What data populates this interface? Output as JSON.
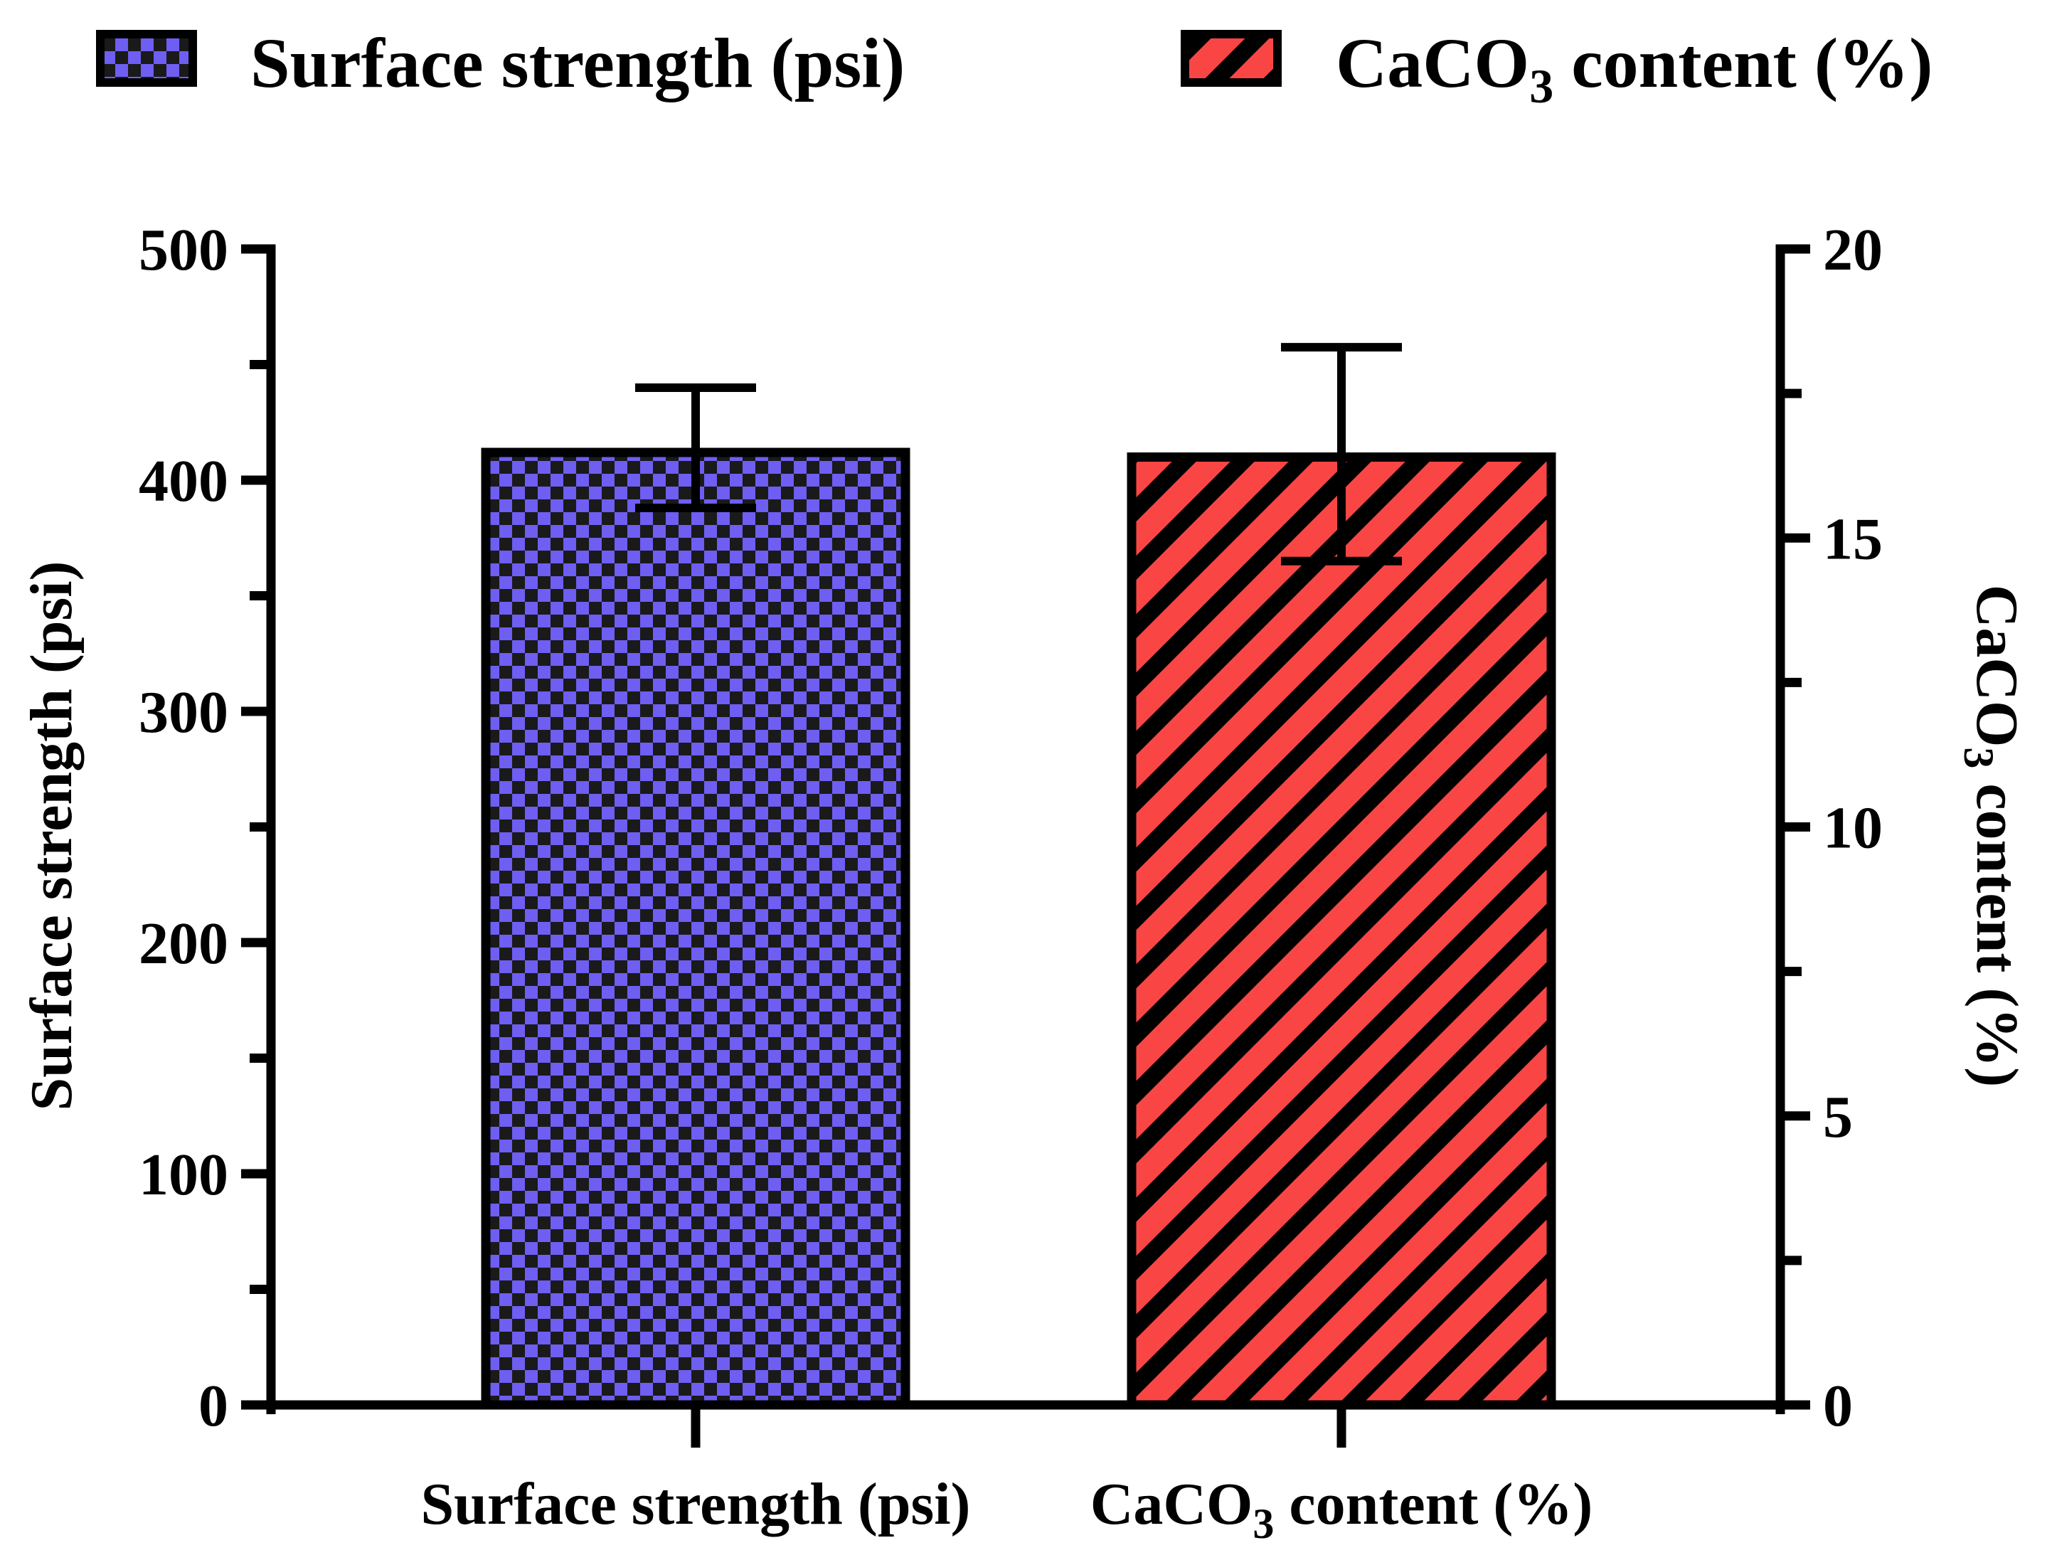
{
  "chart_data": {
    "type": "bar",
    "categories": [
      "Surface strength (psi)",
      "CaCO3 content (%)"
    ],
    "series": [
      {
        "name": "Surface strength (psi)",
        "axis": "left",
        "category": "Surface strength (psi)",
        "value": 412,
        "error_plus": 28,
        "error_minus": 24,
        "color": "#6e5ef2",
        "pattern": "checkerboard"
      },
      {
        "name": "CaCO3 content (%)",
        "axis": "right",
        "category": "CaCO3 content (%)",
        "value": 16.4,
        "error_plus": 1.9,
        "error_minus": 1.8,
        "color": "#f94645",
        "pattern": "diagonal-stripes"
      }
    ],
    "y_left": {
      "label": "Surface strength  (psi)",
      "range": [
        0,
        500
      ],
      "ticks": [
        "0",
        "100",
        "200",
        "300",
        "400",
        "500"
      ],
      "tick_values": [
        0,
        100,
        200,
        300,
        400,
        500
      ],
      "minor_tick_step": 50
    },
    "y_right": {
      "label_main": "CaCO",
      "label_sub": "3",
      "label_tail": " content (%)",
      "range": [
        0,
        20
      ],
      "ticks": [
        "0",
        "5",
        "10",
        "15",
        "20"
      ],
      "tick_values": [
        0,
        5,
        10,
        15,
        20
      ],
      "minor_tick_step": 2.5
    },
    "x_labels": [
      {
        "main": "Surface strength (psi)"
      },
      {
        "main": "CaCO",
        "sub": "3",
        "tail": " content (%)"
      }
    ],
    "legend": {
      "position": "top",
      "entries": [
        {
          "main": "Surface strength (psi)"
        },
        {
          "main": "CaCO",
          "sub": "3",
          "tail": " content (%)"
        }
      ]
    }
  }
}
